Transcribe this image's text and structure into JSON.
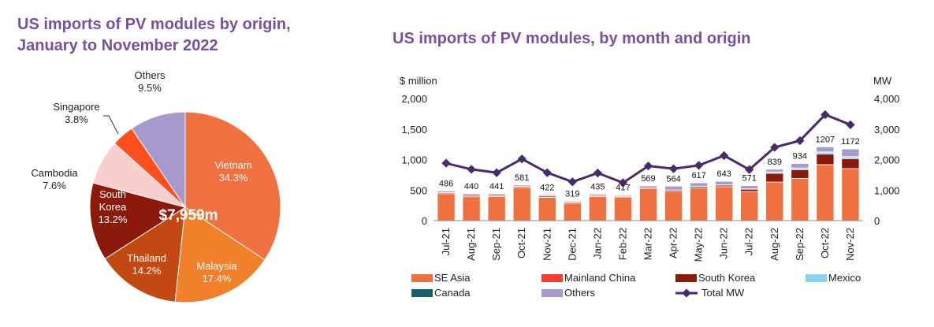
{
  "titles": {
    "left_line1": "US imports of PV modules by origin,",
    "left_line2": "January to November 2022",
    "right": "US imports of PV modules, by month and origin"
  },
  "chart_data": [
    {
      "type": "pie",
      "center_label": "$7,959m",
      "slices": [
        {
          "name": "Vietnam",
          "value": 34.3,
          "label": "34.3%",
          "color": "#f07040"
        },
        {
          "name": "Malaysia",
          "value": 17.4,
          "label": "17.4%",
          "color": "#f0802a"
        },
        {
          "name": "Thailand",
          "value": 14.2,
          "label": "14.2%",
          "color": "#c24a12"
        },
        {
          "name": "South Korea",
          "name_lines": [
            "South",
            "Korea"
          ],
          "value": 13.2,
          "label": "13.2%",
          "color": "#8b1a0c"
        },
        {
          "name": "Cambodia",
          "value": 7.6,
          "label": "7.6%",
          "color": "#f8cece"
        },
        {
          "name": "Singapore",
          "value": 3.8,
          "label": "3.8%",
          "color": "#ff4f1c"
        },
        {
          "name": "Others",
          "value": 9.5,
          "label": "9.5%",
          "color": "#a899cc"
        }
      ]
    },
    {
      "type": "bar",
      "stacked": true,
      "left_unit": "$ million",
      "right_unit": "MW",
      "ylim": [
        0,
        2000
      ],
      "y2lim": [
        0,
        4000
      ],
      "yticks": [
        "0",
        "500",
        "1,000",
        "1,500",
        "2,000"
      ],
      "y2ticks": [
        "0",
        "1,000",
        "2,000",
        "3,000",
        "4,000"
      ],
      "categories": [
        "Jul-21",
        "Aug-21",
        "Sep-21",
        "Oct-21",
        "Nov-21",
        "Dec-21",
        "Jan-22",
        "Feb-22",
        "Mar-22",
        "Apr-22",
        "May-22",
        "Jun-22",
        "Jul-22",
        "Aug-22",
        "Sep-22",
        "Oct-22",
        "Nov-22"
      ],
      "totals": [
        486,
        440,
        441,
        581,
        422,
        319,
        435,
        417,
        569,
        564,
        617,
        643,
        571,
        839,
        934,
        1207,
        1172
      ],
      "total_labels": [
        "486",
        "440",
        "441",
        "581",
        "422",
        "319",
        "435",
        "417",
        "569",
        "564",
        "617",
        "643",
        "571",
        "839",
        "934",
        "1207",
        "1172"
      ],
      "series": [
        {
          "name": "SE Asia",
          "color": "#f07040",
          "values": [
            440,
            390,
            395,
            540,
            380,
            285,
            395,
            385,
            520,
            475,
            535,
            555,
            475,
            630,
            690,
            915,
            850
          ]
        },
        {
          "name": "Mainland China",
          "color": "#ff3a2a",
          "values": [
            3,
            3,
            3,
            3,
            3,
            3,
            3,
            3,
            3,
            3,
            3,
            3,
            3,
            3,
            3,
            3,
            3
          ]
        },
        {
          "name": "South Korea",
          "color": "#8b1a0c",
          "values": [
            15,
            17,
            15,
            15,
            17,
            13,
            12,
            10,
            16,
            20,
            20,
            22,
            35,
            140,
            140,
            170,
            160
          ]
        },
        {
          "name": "Mexico",
          "color": "#88d4f0",
          "values": [
            3,
            3,
            3,
            3,
            3,
            2,
            3,
            2,
            3,
            3,
            5,
            5,
            5,
            20,
            25,
            30,
            28
          ]
        },
        {
          "name": "Canada",
          "color": "#1a5e6e",
          "values": [
            2,
            2,
            2,
            2,
            2,
            2,
            2,
            2,
            2,
            2,
            2,
            3,
            3,
            6,
            6,
            9,
            9
          ]
        },
        {
          "name": "Others",
          "color": "#a899cc",
          "values": [
            23,
            25,
            23,
            18,
            17,
            14,
            20,
            15,
            25,
            61,
            52,
            55,
            50,
            40,
            70,
            80,
            122
          ]
        }
      ],
      "line_series": {
        "name": "Total MW",
        "color": "#4b2a6b",
        "values": [
          1880,
          1680,
          1570,
          2020,
          1570,
          1270,
          1560,
          1240,
          1790,
          1700,
          1810,
          2130,
          1670,
          2400,
          2620,
          3470,
          3140
        ]
      }
    }
  ]
}
